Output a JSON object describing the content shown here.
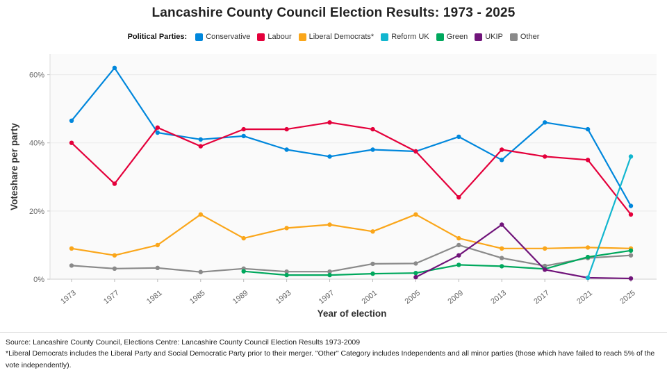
{
  "title": "Lancashire County Council Election Results: 1973 - 2025",
  "legend": {
    "label": "Political Parties:",
    "items": [
      {
        "label": "Conservative",
        "color": "#0087DC"
      },
      {
        "label": "Labour",
        "color": "#E4003B"
      },
      {
        "label": "Liberal Democrats*",
        "color": "#FAA61A"
      },
      {
        "label": "Reform UK",
        "color": "#12B6CF"
      },
      {
        "label": "Green",
        "color": "#00A85D"
      },
      {
        "label": "UKIP",
        "color": "#70147A"
      },
      {
        "label": "Other",
        "color": "#8A8A8A"
      }
    ]
  },
  "chart_data": {
    "type": "line",
    "x": [
      1973,
      1977,
      1981,
      1985,
      1989,
      1993,
      1997,
      2001,
      2005,
      2009,
      2013,
      2017,
      2021,
      2025
    ],
    "xlabel": "Year of election",
    "ylabel": "Voteshare per party",
    "ylim": [
      0,
      65
    ],
    "yticks": [
      0,
      20,
      40,
      60
    ],
    "ytick_labels": [
      "0%",
      "20%",
      "40%",
      "60%"
    ],
    "grid": true,
    "legend_position": "top",
    "series": [
      {
        "name": "Conservative",
        "color": "#0087DC",
        "values": [
          46.5,
          62,
          43,
          41,
          42,
          38,
          36,
          38,
          37.5,
          41.8,
          35,
          46,
          44,
          21.5
        ]
      },
      {
        "name": "Labour",
        "color": "#E4003B",
        "values": [
          40,
          28,
          44.5,
          39,
          44,
          44,
          46,
          44,
          37.5,
          24,
          38,
          36,
          35,
          19
        ]
      },
      {
        "name": "Other",
        "color": "#8A8A8A",
        "values": [
          4,
          3.1,
          3.3,
          2.1,
          3.1,
          2.2,
          2.2,
          4.5,
          4.6,
          10,
          6.2,
          3.9,
          6.2,
          7
        ]
      },
      {
        "name": "Liberal Democrats*",
        "color": "#FAA61A",
        "values": [
          9,
          7,
          10,
          19,
          12,
          15,
          16,
          14,
          19,
          12,
          9,
          9,
          9.3,
          9
        ]
      },
      {
        "name": "Green",
        "color": "#00A85D",
        "values": [
          null,
          null,
          null,
          null,
          2.3,
          1.2,
          1.2,
          1.6,
          1.8,
          4.2,
          3.8,
          3,
          6.5,
          8.4
        ]
      },
      {
        "name": "UKIP",
        "color": "#70147A",
        "values": [
          null,
          null,
          null,
          null,
          null,
          null,
          null,
          null,
          0.6,
          7,
          16,
          2.8,
          0.4,
          0.2
        ]
      },
      {
        "name": "Reform UK",
        "color": "#12B6CF",
        "values": [
          null,
          null,
          null,
          null,
          null,
          null,
          null,
          null,
          null,
          null,
          null,
          null,
          0.4,
          36
        ]
      }
    ]
  },
  "footer": {
    "line1": "Source: Lancashire County Council, Elections Centre: Lancashire County Council Election Results 1973-2009",
    "line2": "*Liberal Democrats includes the Liberal Party and Social Democratic Party prior to their merger. \"Other\" Category includes Independents and all minor parties (those which have failed to reach 5% of the vote independently)."
  }
}
